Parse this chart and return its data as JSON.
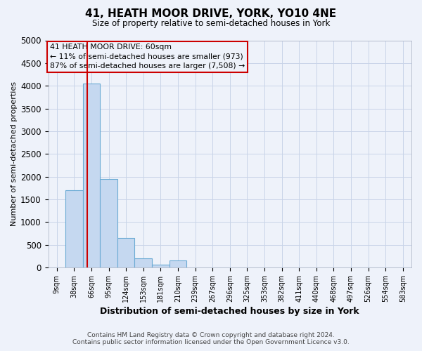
{
  "title": "41, HEATH MOOR DRIVE, YORK, YO10 4NE",
  "subtitle": "Size of property relative to semi-detached houses in York",
  "xlabel": "Distribution of semi-detached houses by size in York",
  "ylabel": "Number of semi-detached properties",
  "footer_line1": "Contains HM Land Registry data © Crown copyright and database right 2024.",
  "footer_line2": "Contains public sector information licensed under the Open Government Licence v3.0.",
  "bin_labels": [
    "9sqm",
    "38sqm",
    "66sqm",
    "95sqm",
    "124sqm",
    "153sqm",
    "181sqm",
    "210sqm",
    "239sqm",
    "267sqm",
    "296sqm",
    "325sqm",
    "353sqm",
    "382sqm",
    "411sqm",
    "440sqm",
    "468sqm",
    "497sqm",
    "526sqm",
    "554sqm",
    "583sqm"
  ],
  "bar_values": [
    0,
    1700,
    4050,
    1950,
    650,
    200,
    60,
    150,
    0,
    0,
    0,
    0,
    0,
    0,
    0,
    0,
    0,
    0,
    0,
    0,
    0
  ],
  "bar_color": "#c5d8f0",
  "bar_edge_color": "#6aaad4",
  "grid_color": "#c8d4e8",
  "background_color": "#eef2fa",
  "vline_x": 1.75,
  "vline_color": "#cc0000",
  "annotation_text": "41 HEATH MOOR DRIVE: 60sqm\n← 11% of semi-detached houses are smaller (973)\n87% of semi-detached houses are larger (7,508) →",
  "annotation_box_color": "#cc0000",
  "ylim": [
    0,
    5000
  ],
  "yticks": [
    0,
    500,
    1000,
    1500,
    2000,
    2500,
    3000,
    3500,
    4000,
    4500,
    5000
  ]
}
